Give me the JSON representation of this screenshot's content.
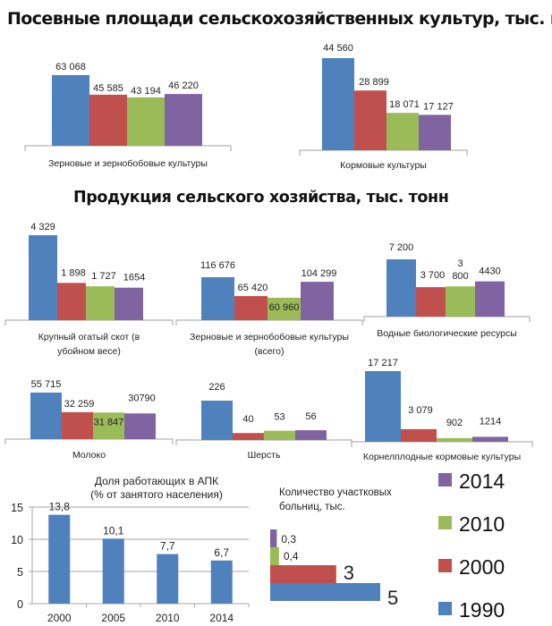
{
  "titles": {
    "sown_areas": "Посевные площади сельскохозяйственных культур, тыс. га",
    "production": "Продукция сельского хозяйства, тыс. тонн"
  },
  "colors": {
    "1990": "#4f81bd",
    "2000": "#c0504d",
    "2010": "#9bbb59",
    "2014": "#8064a2"
  },
  "legend": {
    "items": [
      {
        "label": "2014",
        "color": "#8064a2"
      },
      {
        "label": "2010",
        "color": "#9bbb59"
      },
      {
        "label": "2000",
        "color": "#c0504d"
      },
      {
        "label": "1990",
        "color": "#4f81bd"
      }
    ]
  },
  "chart_data": [
    {
      "id": "grain-area",
      "type": "bar",
      "group": "sown_areas",
      "category": "Зерновые и зернобобовые культуры",
      "series_names": [
        "1990",
        "2000",
        "2010",
        "2014"
      ],
      "values": [
        63068,
        45585,
        43194,
        46220
      ],
      "value_labels": [
        "63 068",
        "45 585",
        "43 194",
        "46 220"
      ]
    },
    {
      "id": "forage-area",
      "type": "bar",
      "group": "sown_areas",
      "category": "Кормовые культуры",
      "series_names": [
        "1990",
        "2000",
        "2010",
        "2014"
      ],
      "values": [
        44560,
        28899,
        18071,
        17127
      ],
      "value_labels": [
        "44 560",
        "28 899",
        "18 071",
        "17 127"
      ]
    },
    {
      "id": "cattle",
      "type": "bar",
      "group": "production",
      "category": [
        "Крупный огатый скот (в",
        "убойном весе)"
      ],
      "series_names": [
        "1990",
        "2000",
        "2010",
        "2014"
      ],
      "values": [
        4329,
        1898,
        1727,
        1654
      ],
      "value_labels": [
        "4 329",
        "1 898",
        "1 727",
        "1654"
      ]
    },
    {
      "id": "grain-production",
      "type": "bar",
      "group": "production",
      "category": [
        "Зерновые и зернобобовые культуры",
        "(всего)"
      ],
      "series_names": [
        "1990",
        "2000",
        "2010",
        "2014"
      ],
      "values": [
        116676,
        65420,
        60960,
        104299
      ],
      "value_labels": [
        "116 676",
        "65 420",
        "60 960",
        "104 299"
      ]
    },
    {
      "id": "aquatic",
      "type": "bar",
      "group": "production",
      "category": "Водные биологические ресурсы",
      "series_names": [
        "1990",
        "2000",
        "2010",
        "2014"
      ],
      "values": [
        7200,
        3700,
        3800,
        4430
      ],
      "value_labels": [
        "7 200",
        "3 700",
        "3 800",
        "4430"
      ]
    },
    {
      "id": "milk",
      "type": "bar",
      "group": "production",
      "category": "Молоко",
      "series_names": [
        "1990",
        "2000",
        "2010",
        "2014"
      ],
      "values": [
        55715,
        32259,
        31847,
        30790
      ],
      "value_labels": [
        "55 715",
        "32 259",
        "31 847",
        "30790"
      ]
    },
    {
      "id": "wool",
      "type": "bar",
      "group": "production",
      "category": "Шерсть",
      "series_names": [
        "1990",
        "2000",
        "2010",
        "2014"
      ],
      "values": [
        226,
        40,
        53,
        56
      ],
      "value_labels": [
        "226",
        "40",
        "53",
        "56"
      ]
    },
    {
      "id": "root-forage",
      "type": "bar",
      "group": "production",
      "category": "Корнелплодные кормовые культуры",
      "series_names": [
        "1990",
        "2000",
        "2010",
        "2014"
      ],
      "values": [
        17217,
        3079,
        902,
        1214
      ],
      "value_labels": [
        "17 217",
        "3 079",
        "902",
        "1214"
      ]
    },
    {
      "id": "agro-workers-share",
      "type": "bar",
      "title": [
        "Доля работающих в АПК",
        "(% от занятого населения)"
      ],
      "categories": [
        "2000",
        "2005",
        "2010",
        "2014"
      ],
      "values": [
        13.8,
        10.1,
        7.7,
        6.7
      ],
      "value_labels": [
        "13,8",
        "10,1",
        "7,7",
        "6,7"
      ],
      "ylim": [
        0,
        15
      ],
      "yticks": [
        "0",
        "5",
        "10",
        "15"
      ],
      "grid": true,
      "color": "#4f81bd"
    },
    {
      "id": "rural-hospitals",
      "type": "bar",
      "orientation": "horizontal",
      "title": [
        "Количество участковых",
        "больниц, тыс."
      ],
      "series_names": [
        "1990",
        "2000",
        "2010",
        "2014"
      ],
      "values": [
        5,
        3,
        0.4,
        0.3
      ],
      "value_labels": [
        "5",
        "3",
        "0,4",
        "0,3"
      ]
    }
  ]
}
